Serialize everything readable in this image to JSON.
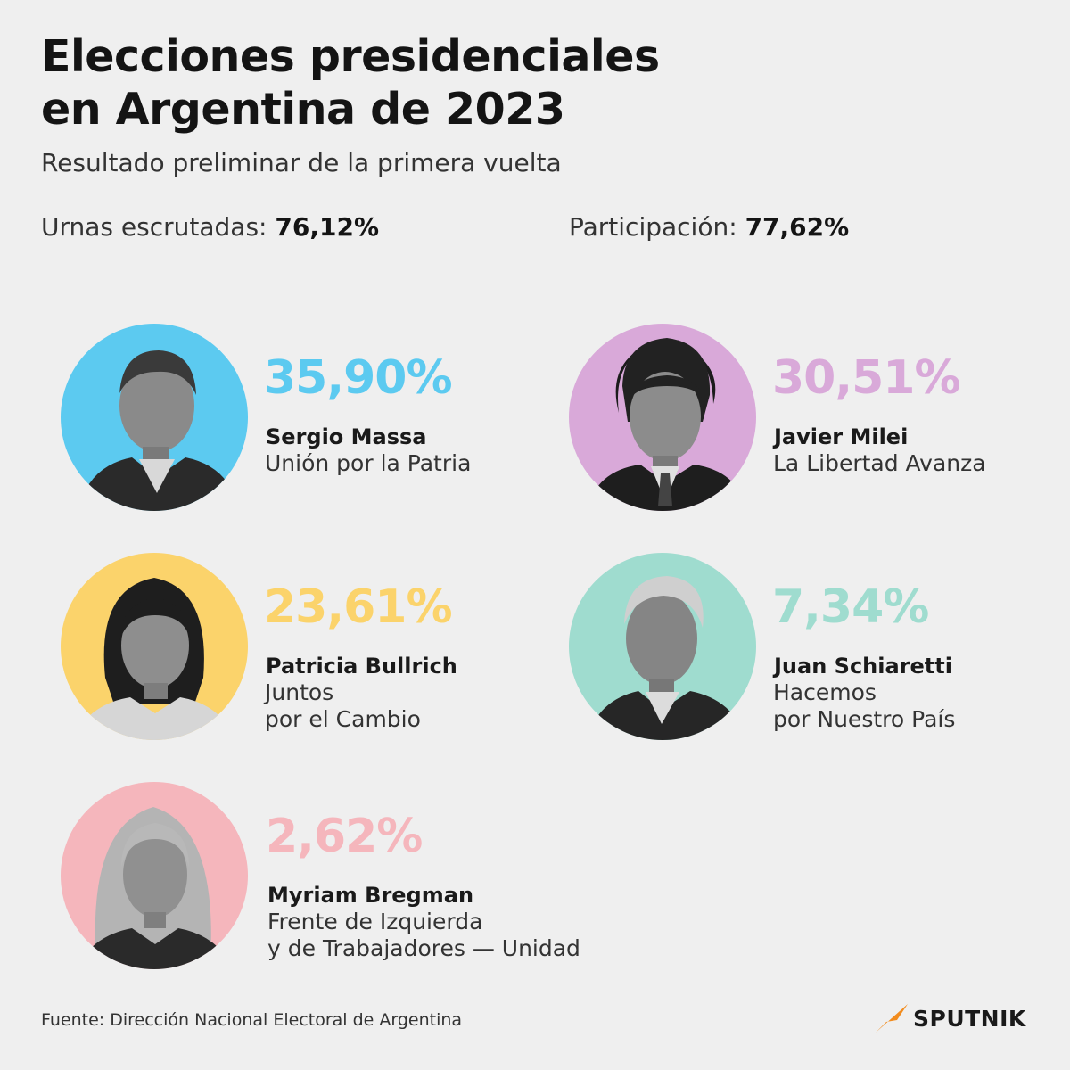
{
  "title": {
    "line1": "Elecciones presidenciales",
    "line2": "en Argentina de 2023"
  },
  "subtitle": "Resultado preliminar de la primera vuelta",
  "stats": {
    "urnas_label": "Urnas escrutadas:",
    "urnas_value": "76,12%",
    "participacion_label": "Participación:",
    "participacion_value": "77,62%"
  },
  "candidates": [
    {
      "percent": "35,90%",
      "name": "Sergio Massa",
      "party_line1": "Unión por la Patria",
      "party_line2": "",
      "color": "#5ccaf0"
    },
    {
      "percent": "30,51%",
      "name": "Javier Milei",
      "party_line1": "La Libertad Avanza",
      "party_line2": "",
      "color": "#d9a9d9"
    },
    {
      "percent": "23,61%",
      "name": "Patricia Bullrich",
      "party_line1": "Juntos",
      "party_line2": "por el Cambio",
      "color": "#fbd36b"
    },
    {
      "percent": "7,34%",
      "name": "Juan Schiaretti",
      "party_line1": "Hacemos",
      "party_line2": "por Nuestro País",
      "color": "#9fdccf"
    },
    {
      "percent": "2,62%",
      "name": "Myriam Bregman",
      "party_line1": "Frente de Izquierda",
      "party_line2": "y de Trabajadores — Unidad",
      "color": "#f5b6bc"
    }
  ],
  "footer": {
    "source": "Fuente: Dirección Nacional Electoral de Argentina",
    "logo": "SPUTNIK",
    "logo_color": "#f28c1e"
  }
}
